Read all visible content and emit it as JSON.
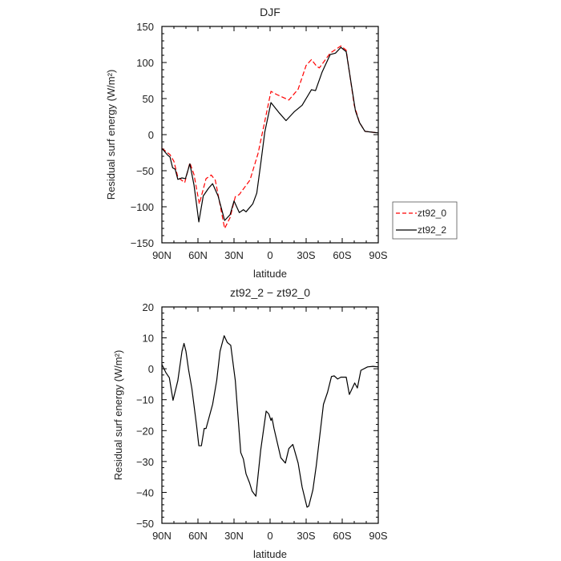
{
  "chart_data": [
    {
      "type": "line",
      "title": "DJF",
      "xlabel": "latitude",
      "ylabel": "Residual surf energy (W/m²)",
      "xlim": [
        90,
        -90
      ],
      "ylim": [
        -150,
        150
      ],
      "yticks": [
        -150,
        -100,
        -50,
        0,
        50,
        100,
        150
      ],
      "ytick_labels": [
        "−150",
        "−100",
        "−50",
        "0",
        "50",
        "100",
        "150"
      ],
      "xticks": [
        90,
        60,
        30,
        0,
        -30,
        -60,
        -90
      ],
      "xtick_labels": [
        "90N",
        "60N",
        "30N",
        "0",
        "30S",
        "60S",
        "90S"
      ],
      "legend_position": "right",
      "series": [
        {
          "name": "zt92_0",
          "color": "#ff0000",
          "dash": "dashed",
          "x": [
            90,
            83.3,
            80,
            76.7,
            71,
            66.7,
            63.3,
            58.9,
            53.3,
            48.9,
            45.6,
            37.8,
            33.3,
            28.9,
            25.6,
            16.7,
            10,
            4.4,
            -0.7,
            -5.6,
            -15.6,
            -23.3,
            -30,
            -34.4,
            -38.9,
            -41,
            -50,
            -58.9,
            -63.3,
            -70,
            -74.4,
            -78.9,
            -90
          ],
          "y": [
            -19,
            -27.7,
            -37,
            -59,
            -66.5,
            -39,
            -55.5,
            -96,
            -61,
            -56,
            -63,
            -130,
            -115,
            -86,
            -83,
            -63,
            -26,
            18.5,
            60,
            55.5,
            48,
            63,
            96,
            104,
            94.5,
            92.6,
            113,
            123,
            117,
            40.7,
            16.7,
            4.6,
            2.3
          ]
        },
        {
          "name": "zt92_2",
          "color": "#000000",
          "dash": "solid",
          "x": [
            90,
            85.6,
            83.3,
            81.1,
            78.9,
            76.7,
            73.3,
            70.4,
            66.7,
            63.3,
            59.3,
            55.6,
            51.1,
            47.8,
            43.3,
            37.8,
            33.3,
            30,
            25.6,
            22.2,
            20,
            14.4,
            11.1,
            7.8,
            4.4,
            -0.7,
            -7.8,
            -13.3,
            -20,
            -26.7,
            -34.4,
            -37.8,
            -43.3,
            -50,
            -54.4,
            -58.9,
            -63.3,
            -71,
            -74.4,
            -78.9,
            -90
          ],
          "y": [
            -19,
            -27.7,
            -31,
            -46,
            -48,
            -62,
            -60,
            -61,
            -40.5,
            -70,
            -121,
            -85,
            -74,
            -68,
            -85,
            -119,
            -111,
            -92,
            -108,
            -104,
            -107,
            -96,
            -81,
            -40.5,
            3.7,
            44.5,
            29.8,
            19.4,
            31.6,
            40.8,
            62.3,
            61,
            87,
            111,
            113,
            121,
            115,
            33,
            16.7,
            4.6,
            2.3
          ]
        }
      ]
    },
    {
      "type": "line",
      "title": "zt92_2 − zt92_0",
      "xlabel": "latitude",
      "ylabel": "Residual surf energy (W/m²)",
      "xlim": [
        90,
        -90
      ],
      "ylim": [
        -50,
        20
      ],
      "yticks": [
        -50,
        -40,
        -30,
        -20,
        -10,
        0,
        10,
        20
      ],
      "ytick_labels": [
        "−50",
        "−40",
        "−30",
        "−20",
        "−10",
        "0",
        "10",
        "20"
      ],
      "xticks": [
        90,
        60,
        30,
        0,
        -30,
        -60,
        -90
      ],
      "xtick_labels": [
        "90N",
        "60N",
        "30N",
        "0",
        "30S",
        "60S",
        "90S"
      ],
      "series": [
        {
          "name": "zt92_2 − zt92_0",
          "color": "#000000",
          "dash": "solid",
          "x": [
            90,
            86.7,
            83.8,
            80.7,
            76.7,
            73.3,
            71.6,
            70,
            67.8,
            65.1,
            61.1,
            59.3,
            57.1,
            54.8,
            53.3,
            47.8,
            44.4,
            41.6,
            38.2,
            35.6,
            32.7,
            28.9,
            24.4,
            22.2,
            20,
            17.1,
            14.9,
            11.8,
            7.8,
            3.3,
            1.1,
            -0.7,
            -1.6,
            -3.3,
            -8.9,
            -12.7,
            -15.6,
            -18.9,
            -23.3,
            -26.7,
            -30.7,
            -32.2,
            -35.6,
            -38.4,
            -44.4,
            -47.8,
            -51.1,
            -53.3,
            -56.2,
            -58.9,
            -63.3,
            -65.9,
            -70.4,
            -72.6,
            -75.5,
            -81.1,
            -85.6,
            -90
          ],
          "y": [
            1.4,
            -1.2,
            -2.9,
            -10.2,
            -3.8,
            5.7,
            8.2,
            5.7,
            -0.3,
            -6.4,
            -18.4,
            -24.9,
            -24.9,
            -19.3,
            -19.3,
            -11.5,
            -3.8,
            5.7,
            10.7,
            8.5,
            7.6,
            -3.8,
            -27.1,
            -29.2,
            -34,
            -36.9,
            -39.6,
            -41.2,
            -26.3,
            -13.7,
            -14.6,
            -16.7,
            -15.9,
            -19.3,
            -28.8,
            -30.5,
            -25.8,
            -24.5,
            -30.5,
            -38.3,
            -44.8,
            -44.4,
            -39.2,
            -31.4,
            -11.5,
            -7.6,
            -2.5,
            -2.3,
            -3.3,
            -2.7,
            -2.7,
            -8.3,
            -4.6,
            -6.2,
            -0.5,
            0.6,
            0.8,
            0.6
          ]
        }
      ]
    }
  ]
}
